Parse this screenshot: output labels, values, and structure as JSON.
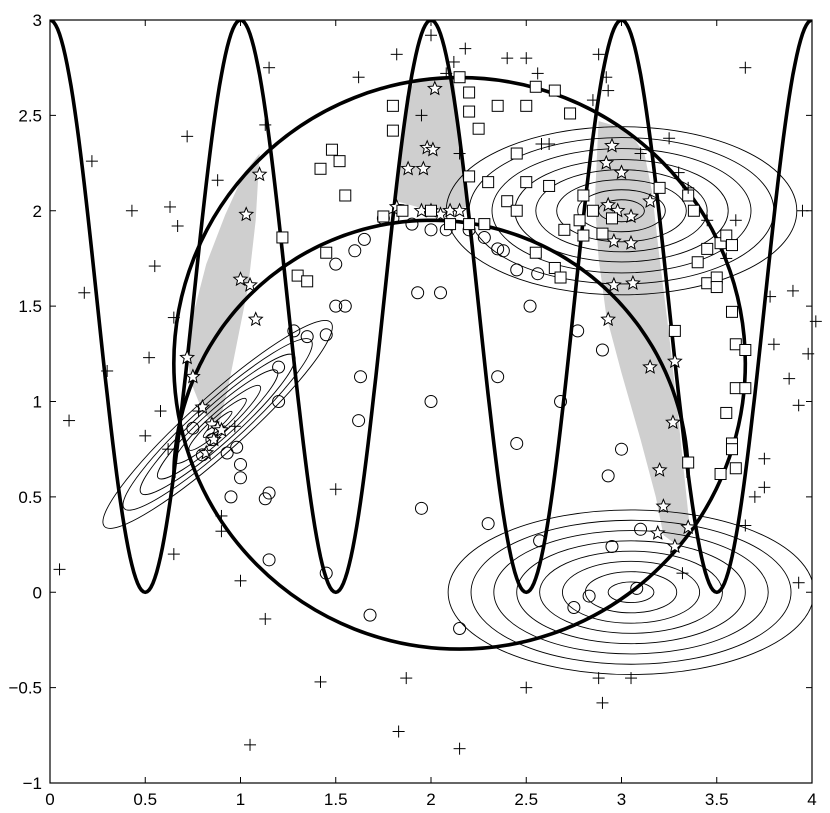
{
  "chart_data": {
    "type": "scatter",
    "title": "",
    "xlabel": "",
    "ylabel": "",
    "xlim": [
      0,
      4
    ],
    "ylim": [
      -1,
      3
    ],
    "x_ticks": [
      "0",
      "0.5",
      "1",
      "1.5",
      "2",
      "2.5",
      "3",
      "3.5",
      "4"
    ],
    "y_ticks": [
      "-1",
      "-0.5",
      "0",
      "0.5",
      "1",
      "1.5",
      "2",
      "2.5",
      "3"
    ],
    "grid": false,
    "legend": "none",
    "colors": {
      "ink": "#000000",
      "shade": "#cfcfcf",
      "marker_fill": "#ffffff"
    },
    "curves": {
      "sinusoid": {
        "description_values": {
          "amplitude": 1.5,
          "offset": 1.5,
          "period": 1.0,
          "x_range": [
            0,
            4
          ]
        }
      },
      "circle": {
        "center": [
          2.15,
          1.2
        ],
        "radius": 1.5
      },
      "inner_arc": {
        "center": [
          2.0,
          0.6
        ],
        "radius": 1.35
      }
    },
    "contours": [
      {
        "center": [
          3.0,
          2.0
        ],
        "rx_levels": [
          0.12,
          0.23,
          0.34,
          0.45,
          0.56,
          0.68,
          0.8,
          0.92
        ],
        "ratio": 0.48
      },
      {
        "center": [
          3.05,
          0.0
        ],
        "rx_levels": [
          0.12,
          0.24,
          0.36,
          0.48,
          0.6,
          0.72,
          0.84,
          0.96
        ],
        "ratio": 0.45
      },
      {
        "center": [
          0.88,
          0.88
        ],
        "rx_levels": [
          0.1,
          0.2,
          0.3,
          0.42,
          0.54,
          0.66,
          0.8
        ],
        "ratio": 0.18,
        "angle_deg": 42
      }
    ],
    "series": [
      {
        "marker": "star",
        "points": [
          [
            0.72,
            1.23
          ],
          [
            0.75,
            1.13
          ],
          [
            0.8,
            0.97
          ],
          [
            0.85,
            0.88
          ],
          [
            0.88,
            0.86
          ],
          [
            0.9,
            0.85
          ],
          [
            0.82,
            0.73
          ],
          [
            0.86,
            0.8
          ],
          [
            1.0,
            1.64
          ],
          [
            1.05,
            1.61
          ],
          [
            1.08,
            1.43
          ],
          [
            1.03,
            1.98
          ],
          [
            1.1,
            2.19
          ],
          [
            1.82,
            2.02
          ],
          [
            1.95,
            2.0
          ],
          [
            2.0,
            2.0
          ],
          [
            2.05,
            1.98
          ],
          [
            2.1,
            2.0
          ],
          [
            2.15,
            2.0
          ],
          [
            1.98,
            2.33
          ],
          [
            2.01,
            2.32
          ],
          [
            1.88,
            2.22
          ],
          [
            1.96,
            2.22
          ],
          [
            2.02,
            2.64
          ],
          [
            2.92,
            2.25
          ],
          [
            2.95,
            2.34
          ],
          [
            2.93,
            2.03
          ],
          [
            2.98,
            2.0
          ],
          [
            3.05,
            1.97
          ],
          [
            3.05,
            1.83
          ],
          [
            2.96,
            1.84
          ],
          [
            3.0,
            2.2
          ],
          [
            3.15,
            2.05
          ],
          [
            2.96,
            1.61
          ],
          [
            3.06,
            1.62
          ],
          [
            2.93,
            1.43
          ],
          [
            3.15,
            1.18
          ],
          [
            3.28,
            1.21
          ],
          [
            3.27,
            0.89
          ],
          [
            3.2,
            0.64
          ],
          [
            3.22,
            0.45
          ],
          [
            3.19,
            0.31
          ],
          [
            3.28,
            0.24
          ],
          [
            3.35,
            0.34
          ]
        ]
      },
      {
        "marker": "circle",
        "points": [
          [
            0.75,
            0.86
          ],
          [
            0.8,
            0.72
          ],
          [
            0.85,
            0.8
          ],
          [
            0.93,
            0.73
          ],
          [
            0.98,
            0.76
          ],
          [
            0.95,
            0.5
          ],
          [
            1.0,
            0.67
          ],
          [
            1.0,
            0.6
          ],
          [
            1.15,
            0.52
          ],
          [
            1.13,
            0.49
          ],
          [
            1.2,
            1.18
          ],
          [
            1.2,
            1.0
          ],
          [
            1.28,
            1.37
          ],
          [
            1.35,
            1.34
          ],
          [
            1.45,
            1.35
          ],
          [
            1.5,
            1.5
          ],
          [
            1.55,
            1.5
          ],
          [
            1.5,
            1.72
          ],
          [
            1.6,
            1.79
          ],
          [
            1.65,
            1.85
          ],
          [
            1.75,
            1.96
          ],
          [
            1.8,
            1.96
          ],
          [
            1.9,
            1.93
          ],
          [
            2.0,
            1.9
          ],
          [
            2.08,
            1.9
          ],
          [
            2.2,
            1.9
          ],
          [
            2.28,
            1.86
          ],
          [
            2.35,
            1.8
          ],
          [
            2.38,
            1.79
          ],
          [
            2.45,
            1.69
          ],
          [
            2.52,
            1.5
          ],
          [
            2.56,
            1.67
          ],
          [
            2.77,
            1.37
          ],
          [
            1.93,
            1.57
          ],
          [
            2.05,
            1.57
          ],
          [
            2.0,
            1.0
          ],
          [
            2.35,
            1.13
          ],
          [
            2.45,
            0.78
          ],
          [
            2.68,
            1.0
          ],
          [
            2.93,
            0.61
          ],
          [
            3.0,
            0.75
          ],
          [
            2.9,
            1.27
          ],
          [
            1.63,
            1.13
          ],
          [
            1.62,
            0.9
          ],
          [
            1.95,
            0.44
          ],
          [
            2.3,
            0.36
          ],
          [
            2.95,
            0.24
          ],
          [
            2.57,
            0.27
          ],
          [
            3.1,
            0.33
          ],
          [
            3.08,
            0.02
          ],
          [
            2.83,
            -0.02
          ],
          [
            2.75,
            -0.08
          ],
          [
            2.15,
            -0.19
          ],
          [
            1.68,
            -0.12
          ],
          [
            1.45,
            0.1
          ],
          [
            1.15,
            0.17
          ]
        ]
      },
      {
        "marker": "square",
        "points": [
          [
            1.22,
            1.86
          ],
          [
            1.3,
            1.66
          ],
          [
            1.35,
            1.63
          ],
          [
            1.45,
            1.78
          ],
          [
            1.42,
            2.22
          ],
          [
            1.48,
            2.32
          ],
          [
            1.52,
            2.26
          ],
          [
            1.55,
            2.08
          ],
          [
            1.8,
            2.55
          ],
          [
            1.8,
            2.42
          ],
          [
            1.75,
            1.97
          ],
          [
            1.85,
            2.0
          ],
          [
            2.0,
            2.0
          ],
          [
            2.1,
            1.93
          ],
          [
            2.2,
            1.93
          ],
          [
            2.28,
            1.93
          ],
          [
            2.15,
            2.7
          ],
          [
            2.2,
            2.62
          ],
          [
            2.2,
            2.52
          ],
          [
            2.25,
            2.43
          ],
          [
            2.35,
            2.55
          ],
          [
            2.5,
            2.55
          ],
          [
            2.45,
            2.3
          ],
          [
            2.55,
            2.65
          ],
          [
            2.65,
            2.63
          ],
          [
            2.3,
            2.15
          ],
          [
            2.2,
            2.18
          ],
          [
            2.4,
            2.05
          ],
          [
            2.5,
            2.15
          ],
          [
            2.45,
            2.0
          ],
          [
            2.62,
            2.13
          ],
          [
            2.73,
            2.51
          ],
          [
            2.55,
            1.78
          ],
          [
            2.65,
            1.7
          ],
          [
            2.68,
            1.65
          ],
          [
            2.7,
            1.9
          ],
          [
            2.78,
            1.95
          ],
          [
            2.95,
            1.96
          ],
          [
            2.8,
            2.08
          ],
          [
            2.85,
            2.0
          ],
          [
            2.8,
            1.87
          ],
          [
            2.9,
            1.88
          ],
          [
            3.2,
            2.12
          ],
          [
            3.35,
            2.08
          ],
          [
            3.38,
            2.0
          ],
          [
            3.52,
            1.83
          ],
          [
            3.55,
            1.87
          ],
          [
            3.58,
            1.82
          ],
          [
            3.4,
            1.73
          ],
          [
            3.45,
            1.62
          ],
          [
            3.45,
            1.8
          ],
          [
            3.5,
            1.65
          ],
          [
            3.5,
            1.6
          ],
          [
            3.58,
            1.47
          ],
          [
            3.6,
            1.3
          ],
          [
            3.65,
            1.27
          ],
          [
            3.6,
            1.07
          ],
          [
            3.65,
            1.07
          ],
          [
            3.55,
            0.94
          ],
          [
            3.58,
            0.78
          ],
          [
            3.58,
            0.75
          ],
          [
            3.6,
            0.65
          ],
          [
            3.52,
            0.62
          ],
          [
            3.35,
            0.68
          ],
          [
            3.28,
            1.37
          ]
        ]
      },
      {
        "marker": "plus",
        "points": [
          [
            0.05,
            0.12
          ],
          [
            0.1,
            0.9
          ],
          [
            0.18,
            1.57
          ],
          [
            0.22,
            2.26
          ],
          [
            0.3,
            1.16
          ],
          [
            0.43,
            2.0
          ],
          [
            0.5,
            0.82
          ],
          [
            0.52,
            1.23
          ],
          [
            0.55,
            1.71
          ],
          [
            0.58,
            0.95
          ],
          [
            0.62,
            0.75
          ],
          [
            0.63,
            2.02
          ],
          [
            0.65,
            0.2
          ],
          [
            0.65,
            1.44
          ],
          [
            0.67,
            1.92
          ],
          [
            0.72,
            2.39
          ],
          [
            0.78,
            0.95
          ],
          [
            0.88,
            2.16
          ],
          [
            0.9,
            0.4
          ],
          [
            0.9,
            0.32
          ],
          [
            0.97,
            0.87
          ],
          [
            1.0,
            0.06
          ],
          [
            1.13,
            2.45
          ],
          [
            1.13,
            -0.14
          ],
          [
            1.15,
            2.75
          ],
          [
            1.05,
            -0.8
          ],
          [
            1.42,
            -0.47
          ],
          [
            1.5,
            0.54
          ],
          [
            1.62,
            2.7
          ],
          [
            1.83,
            -0.73
          ],
          [
            1.87,
            -0.45
          ],
          [
            1.82,
            2.82
          ],
          [
            1.95,
            2.5
          ],
          [
            2.0,
            2.92
          ],
          [
            2.08,
            2.72
          ],
          [
            2.12,
            2.78
          ],
          [
            2.15,
            -0.82
          ],
          [
            2.15,
            2.3
          ],
          [
            2.18,
            2.85
          ],
          [
            2.4,
            2.8
          ],
          [
            2.5,
            2.8
          ],
          [
            2.56,
            2.72
          ],
          [
            2.5,
            -0.5
          ],
          [
            2.58,
            2.35
          ],
          [
            2.62,
            2.35
          ],
          [
            2.85,
            2.58
          ],
          [
            2.88,
            -0.45
          ],
          [
            2.9,
            -0.58
          ],
          [
            2.93,
            2.63
          ],
          [
            2.88,
            2.82
          ],
          [
            2.92,
            2.7
          ],
          [
            3.1,
            2.3
          ],
          [
            3.25,
            2.38
          ],
          [
            3.3,
            2.2
          ],
          [
            3.35,
            2.12
          ],
          [
            3.45,
            1.95
          ],
          [
            3.55,
            1.75
          ],
          [
            3.6,
            1.95
          ],
          [
            3.65,
            2.75
          ],
          [
            3.65,
            0.35
          ],
          [
            3.7,
            0.5
          ],
          [
            3.75,
            0.7
          ],
          [
            3.75,
            0.55
          ],
          [
            3.78,
            1.55
          ],
          [
            3.8,
            1.3
          ],
          [
            3.88,
            1.12
          ],
          [
            3.9,
            1.58
          ],
          [
            3.93,
            0.98
          ],
          [
            3.93,
            0.05
          ],
          [
            3.95,
            2.0
          ],
          [
            3.98,
            1.25
          ],
          [
            4.02,
            1.42
          ],
          [
            3.32,
            0.1
          ],
          [
            3.05,
            -0.45
          ]
        ]
      }
    ]
  }
}
